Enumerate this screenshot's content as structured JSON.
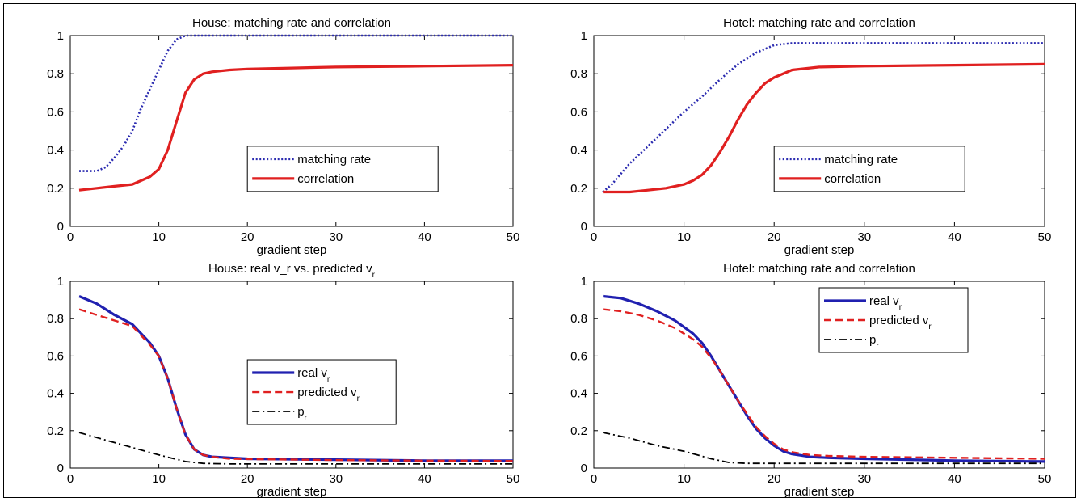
{
  "chart_data": [
    {
      "id": "house-rate",
      "type": "line",
      "title": "House: matching rate and correlation",
      "xlabel": "gradient step",
      "ylabel": "",
      "xlim": [
        0,
        50
      ],
      "ylim": [
        0,
        1
      ],
      "xticks": [
        "0",
        "10",
        "20",
        "30",
        "40",
        "50"
      ],
      "yticks": [
        "0",
        "0.2",
        "0.4",
        "0.6",
        "0.8",
        "1"
      ],
      "legend_position": "center-right",
      "series": [
        {
          "name": "matching rate",
          "color": "#2b2bb0",
          "style": "dotted",
          "x": [
            1,
            2,
            3,
            4,
            5,
            6,
            7,
            8,
            9,
            10,
            11,
            12,
            13,
            14,
            16,
            20,
            30,
            40,
            50
          ],
          "y": [
            0.29,
            0.29,
            0.29,
            0.31,
            0.36,
            0.42,
            0.5,
            0.62,
            0.72,
            0.82,
            0.92,
            0.98,
            1.0,
            1.0,
            1.0,
            1.0,
            1.0,
            1.0,
            1.0
          ]
        },
        {
          "name": "correlation",
          "color": "#e02020",
          "style": "solid",
          "x": [
            1,
            3,
            5,
            7,
            8,
            9,
            10,
            11,
            12,
            13,
            14,
            15,
            16,
            18,
            20,
            25,
            30,
            40,
            50
          ],
          "y": [
            0.19,
            0.2,
            0.21,
            0.22,
            0.24,
            0.26,
            0.3,
            0.4,
            0.55,
            0.7,
            0.77,
            0.8,
            0.81,
            0.82,
            0.825,
            0.83,
            0.835,
            0.84,
            0.845
          ]
        }
      ]
    },
    {
      "id": "hotel-rate",
      "type": "line",
      "title": "Hotel: matching rate and correlation",
      "xlabel": "gradient step",
      "ylabel": "",
      "xlim": [
        0,
        50
      ],
      "ylim": [
        0,
        1
      ],
      "xticks": [
        "0",
        "10",
        "20",
        "30",
        "40",
        "50"
      ],
      "yticks": [
        "0",
        "0.2",
        "0.4",
        "0.6",
        "0.8",
        "1"
      ],
      "legend_position": "center-right",
      "series": [
        {
          "name": "matching rate",
          "color": "#2b2bb0",
          "style": "dotted",
          "x": [
            1,
            2,
            4,
            6,
            8,
            10,
            12,
            14,
            16,
            18,
            20,
            22,
            24,
            30,
            40,
            50
          ],
          "y": [
            0.18,
            0.22,
            0.33,
            0.42,
            0.51,
            0.6,
            0.68,
            0.77,
            0.85,
            0.91,
            0.95,
            0.96,
            0.96,
            0.96,
            0.96,
            0.96
          ]
        },
        {
          "name": "correlation",
          "color": "#e02020",
          "style": "solid",
          "x": [
            1,
            4,
            6,
            8,
            10,
            11,
            12,
            13,
            14,
            15,
            16,
            17,
            18,
            19,
            20,
            22,
            25,
            30,
            40,
            50
          ],
          "y": [
            0.18,
            0.18,
            0.19,
            0.2,
            0.22,
            0.24,
            0.27,
            0.32,
            0.39,
            0.47,
            0.56,
            0.64,
            0.7,
            0.75,
            0.78,
            0.82,
            0.835,
            0.84,
            0.845,
            0.85
          ]
        }
      ]
    },
    {
      "id": "house-vr",
      "type": "line",
      "title": "House: real v_r vs. predicted v_r",
      "xlabel": "gradient step",
      "ylabel": "",
      "xlim": [
        0,
        50
      ],
      "ylim": [
        0,
        1
      ],
      "xticks": [
        "0",
        "10",
        "20",
        "30",
        "40",
        "50"
      ],
      "yticks": [
        "0",
        "0.2",
        "0.4",
        "0.6",
        "0.8",
        "1"
      ],
      "legend_position": "center-right",
      "series": [
        {
          "name": "real v_r",
          "color": "#2020b0",
          "style": "solid",
          "x": [
            1,
            3,
            5,
            7,
            8,
            9,
            10,
            11,
            12,
            13,
            14,
            15,
            16,
            18,
            20,
            30,
            40,
            50
          ],
          "y": [
            0.92,
            0.88,
            0.82,
            0.77,
            0.72,
            0.67,
            0.6,
            0.48,
            0.32,
            0.18,
            0.1,
            0.07,
            0.06,
            0.055,
            0.05,
            0.045,
            0.04,
            0.04
          ]
        },
        {
          "name": "predicted v_r",
          "color": "#e02020",
          "style": "dashed",
          "x": [
            1,
            3,
            5,
            7,
            8,
            9,
            10,
            11,
            12,
            13,
            14,
            15,
            16,
            18,
            20,
            30,
            40,
            50
          ],
          "y": [
            0.85,
            0.82,
            0.79,
            0.76,
            0.71,
            0.66,
            0.6,
            0.48,
            0.32,
            0.18,
            0.1,
            0.07,
            0.06,
            0.05,
            0.048,
            0.043,
            0.04,
            0.038
          ]
        },
        {
          "name": "p_r",
          "color": "#000000",
          "style": "dashdot",
          "x": [
            1,
            4,
            7,
            10,
            13,
            15,
            18,
            20,
            30,
            40,
            50
          ],
          "y": [
            0.19,
            0.15,
            0.11,
            0.07,
            0.035,
            0.025,
            0.022,
            0.022,
            0.022,
            0.022,
            0.022
          ]
        }
      ]
    },
    {
      "id": "hotel-vr",
      "type": "line",
      "title": "Hotel: matching rate and correlation",
      "xlabel": "gradient step",
      "ylabel": "",
      "xlim": [
        0,
        50
      ],
      "ylim": [
        0,
        1
      ],
      "xticks": [
        "0",
        "10",
        "20",
        "30",
        "40",
        "50"
      ],
      "yticks": [
        "0",
        "0.2",
        "0.4",
        "0.6",
        "0.8",
        "1"
      ],
      "legend_position": "top-right",
      "series": [
        {
          "name": "real v_r",
          "color": "#2020b0",
          "style": "solid",
          "x": [
            1,
            3,
            5,
            7,
            9,
            11,
            12,
            13,
            14,
            15,
            16,
            17,
            18,
            19,
            20,
            21,
            22,
            24,
            26,
            30,
            40,
            50
          ],
          "y": [
            0.92,
            0.91,
            0.88,
            0.84,
            0.79,
            0.72,
            0.67,
            0.6,
            0.52,
            0.44,
            0.36,
            0.28,
            0.21,
            0.16,
            0.12,
            0.09,
            0.075,
            0.06,
            0.055,
            0.05,
            0.04,
            0.035
          ]
        },
        {
          "name": "predicted v_r",
          "color": "#e02020",
          "style": "dashed",
          "x": [
            1,
            3,
            5,
            7,
            9,
            11,
            12,
            13,
            14,
            15,
            16,
            17,
            18,
            19,
            20,
            21,
            22,
            24,
            26,
            30,
            40,
            50
          ],
          "y": [
            0.85,
            0.84,
            0.82,
            0.79,
            0.75,
            0.69,
            0.65,
            0.59,
            0.52,
            0.44,
            0.36,
            0.29,
            0.22,
            0.17,
            0.13,
            0.1,
            0.085,
            0.07,
            0.065,
            0.06,
            0.055,
            0.05
          ]
        },
        {
          "name": "p_r",
          "color": "#000000",
          "style": "dashdot",
          "x": [
            1,
            4,
            7,
            10,
            13,
            15,
            17,
            20,
            30,
            40,
            50
          ],
          "y": [
            0.19,
            0.16,
            0.12,
            0.09,
            0.05,
            0.03,
            0.025,
            0.025,
            0.025,
            0.025,
            0.025
          ]
        }
      ]
    }
  ]
}
